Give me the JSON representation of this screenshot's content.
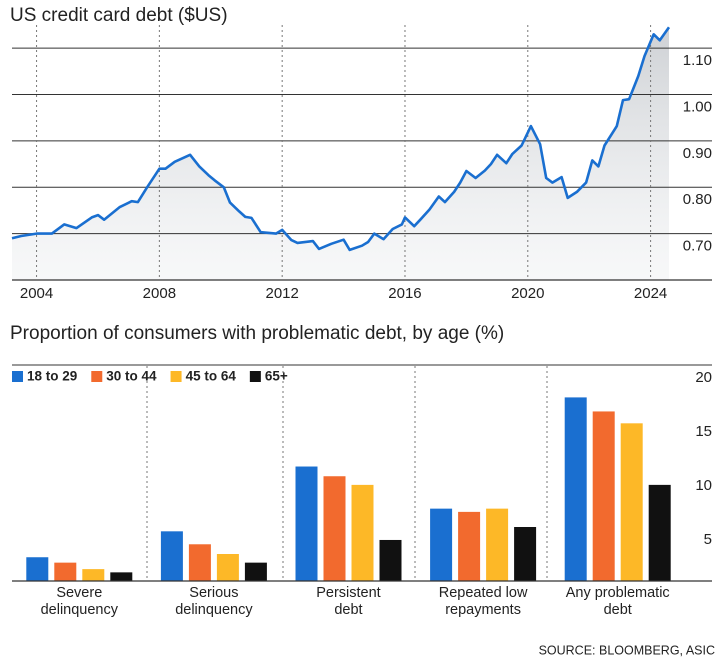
{
  "chart_data": [
    {
      "type": "line",
      "title": "US credit card debt ($US)",
      "color": "#1a6fd0",
      "x": [
        2003.2,
        2003.5,
        2004.0,
        2004.5,
        2004.9,
        2005.3,
        2005.8,
        2006.0,
        2006.2,
        2006.7,
        2007.1,
        2007.3,
        2007.6,
        2008.0,
        2008.2,
        2008.5,
        2009.0,
        2009.3,
        2009.6,
        2009.8,
        2010.1,
        2010.3,
        2010.6,
        2010.8,
        2011.0,
        2011.3,
        2011.8,
        2012.0,
        2012.3,
        2012.5,
        2013.0,
        2013.2,
        2013.6,
        2014.0,
        2014.2,
        2014.6,
        2014.8,
        2015.0,
        2015.3,
        2015.6,
        2015.9,
        2016.0,
        2016.3,
        2016.5,
        2016.8,
        2017.1,
        2017.3,
        2017.6,
        2017.8,
        2018.0,
        2018.3,
        2018.6,
        2018.8,
        2019.0,
        2019.3,
        2019.5,
        2019.8,
        2020.1,
        2020.4,
        2020.6,
        2020.8,
        2021.1,
        2021.3,
        2021.6,
        2021.9,
        2022.1,
        2022.3,
        2022.5,
        2022.9,
        2023.1,
        2023.3,
        2023.6,
        2023.8,
        2024.1,
        2024.3,
        2024.6
      ],
      "values": [
        0.69,
        0.695,
        0.7,
        0.7,
        0.72,
        0.712,
        0.735,
        0.74,
        0.73,
        0.757,
        0.77,
        0.768,
        0.8,
        0.84,
        0.84,
        0.855,
        0.87,
        0.845,
        0.826,
        0.815,
        0.8,
        0.767,
        0.748,
        0.736,
        0.734,
        0.703,
        0.7,
        0.708,
        0.686,
        0.68,
        0.684,
        0.667,
        0.678,
        0.687,
        0.665,
        0.674,
        0.682,
        0.7,
        0.688,
        0.71,
        0.72,
        0.735,
        0.716,
        0.73,
        0.752,
        0.78,
        0.768,
        0.79,
        0.81,
        0.835,
        0.82,
        0.836,
        0.85,
        0.87,
        0.852,
        0.872,
        0.89,
        0.932,
        0.893,
        0.82,
        0.81,
        0.822,
        0.777,
        0.79,
        0.81,
        0.858,
        0.845,
        0.89,
        0.932,
        0.988,
        0.99,
        1.04,
        1.083,
        1.13,
        1.117,
        1.145
      ],
      "xlim": [
        2003.2,
        2026
      ],
      "xticks": [
        2004,
        2008,
        2012,
        2016,
        2020,
        2024
      ],
      "ylim": [
        0.6,
        1.15
      ],
      "yticks": [
        {
          "value": 0.7,
          "label": "0.70"
        },
        {
          "value": 0.8,
          "label": "0.80"
        },
        {
          "value": 0.9,
          "label": "0.90"
        },
        {
          "value": 1.0,
          "label": "1.00"
        },
        {
          "value": 1.1,
          "label": "1.10"
        }
      ],
      "grid": true
    },
    {
      "type": "bar",
      "title": "Proportion of consumers with problematic debt, by age (%)",
      "categories": [
        "Severe\ndelinquency",
        "Serious\ndelinquency",
        "Persistent\ndebt",
        "Repeated low\nrepayments",
        "Any problematic\ndebt"
      ],
      "series": [
        {
          "name": "18 to 29",
          "color": "#1a6fd0",
          "values": [
            2.2,
            4.6,
            10.6,
            6.7,
            17.0
          ]
        },
        {
          "name": "30 to 44",
          "color": "#f26a2e",
          "values": [
            1.7,
            3.4,
            9.7,
            6.4,
            15.7
          ]
        },
        {
          "name": "45 to 64",
          "color": "#fdb827",
          "values": [
            1.1,
            2.5,
            8.9,
            6.7,
            14.6
          ]
        },
        {
          "name": "65+",
          "color": "#111111",
          "values": [
            0.8,
            1.7,
            3.8,
            5.0,
            8.9
          ]
        }
      ],
      "ylim": [
        0,
        20
      ],
      "yticks": [
        5,
        10,
        15,
        20
      ],
      "grid": false
    }
  ],
  "source": "SOURCE: BLOOMBERG, ASIC"
}
